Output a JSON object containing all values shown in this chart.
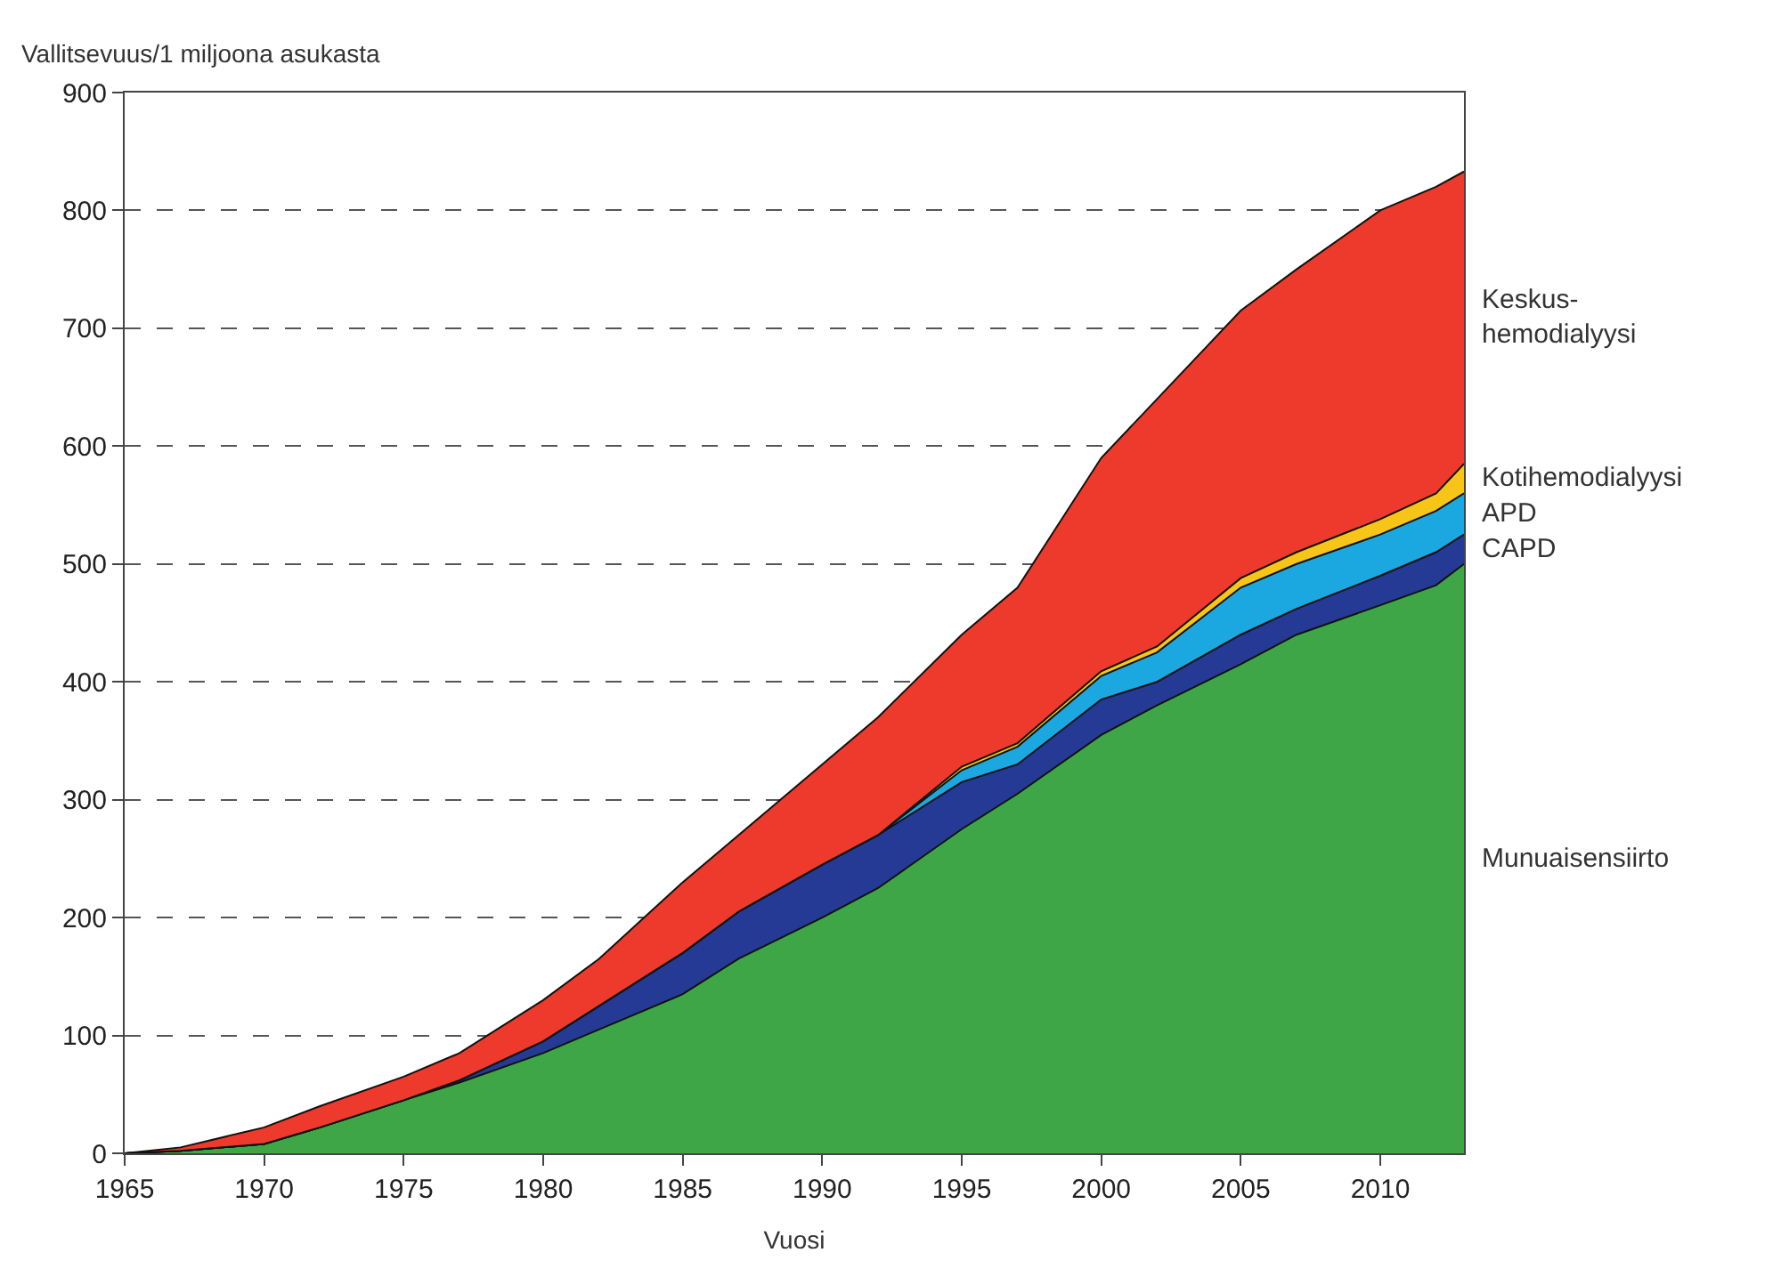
{
  "chart_data": {
    "type": "area",
    "stacked": true,
    "xlabel": "Vuosi",
    "ylabel": "Vallitsevuus/1 miljoona asukasta",
    "x": [
      1965,
      1967,
      1970,
      1972,
      1975,
      1977,
      1980,
      1982,
      1985,
      1987,
      1990,
      1992,
      1995,
      1997,
      2000,
      2002,
      2005,
      2007,
      2010,
      2012,
      2013
    ],
    "series": [
      {
        "name": "Munuaisensiirto",
        "color": "#3fa648",
        "values": [
          0,
          2,
          8,
          22,
          45,
          60,
          85,
          105,
          135,
          165,
          200,
          225,
          275,
          305,
          355,
          380,
          415,
          440,
          465,
          482,
          500
        ]
      },
      {
        "name": "CAPD",
        "color": "#253a94",
        "values": [
          0,
          0,
          0,
          0,
          0,
          2,
          10,
          20,
          35,
          40,
          45,
          45,
          40,
          25,
          30,
          20,
          25,
          22,
          25,
          28,
          25
        ]
      },
      {
        "name": "APD",
        "color": "#1ba8e0",
        "values": [
          0,
          0,
          0,
          0,
          0,
          0,
          0,
          0,
          0,
          0,
          0,
          0,
          10,
          15,
          20,
          25,
          40,
          38,
          35,
          35,
          35
        ]
      },
      {
        "name": "Kotihemodialyysi",
        "color": "#f6c518",
        "values": [
          0,
          0,
          0,
          0,
          0,
          0,
          0,
          0,
          0,
          0,
          0,
          0,
          3,
          3,
          4,
          5,
          8,
          10,
          13,
          15,
          25
        ]
      },
      {
        "name": "Keskus-hemodialyysi",
        "color": "#ee3a2c",
        "values": [
          0,
          3,
          14,
          18,
          20,
          23,
          35,
          40,
          60,
          65,
          85,
          100,
          112,
          132,
          181,
          210,
          227,
          240,
          262,
          260,
          248
        ]
      }
    ],
    "xlim": [
      1965,
      2013
    ],
    "xticks": [
      1965,
      1970,
      1975,
      1980,
      1985,
      1990,
      1995,
      2000,
      2005,
      2010
    ],
    "ylim": [
      0,
      900
    ],
    "yticks": [
      0,
      100,
      200,
      300,
      400,
      500,
      600,
      700,
      800,
      900
    ],
    "grid": "y",
    "legend": false
  }
}
